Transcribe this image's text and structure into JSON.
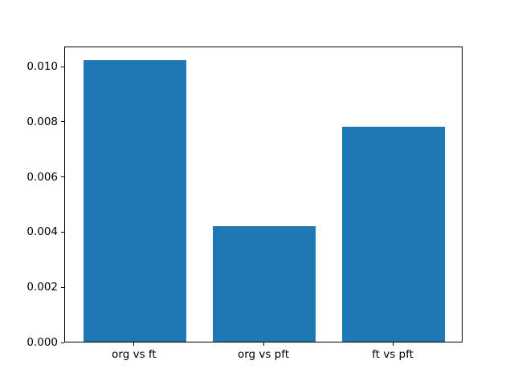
{
  "figure": {
    "background": "#ffffff",
    "title": ""
  },
  "chart_data": {
    "type": "bar",
    "title": "",
    "xlabel": "",
    "ylabel": "",
    "categories": [
      "org vs ft",
      "org vs pft",
      "ft vs pft"
    ],
    "values": [
      0.0102,
      0.0042,
      0.0078
    ],
    "ylim": [
      0,
      0.01073
    ],
    "yticks": [
      0.0,
      0.002,
      0.004,
      0.006,
      0.008,
      0.01
    ],
    "ytick_labels": [
      "0.000",
      "0.002",
      "0.004",
      "0.006",
      "0.008",
      "0.010"
    ],
    "bar_color": "#1f77b4",
    "spine_color": "#000000",
    "text_color": "#000000",
    "grid": false,
    "legend": null
  }
}
